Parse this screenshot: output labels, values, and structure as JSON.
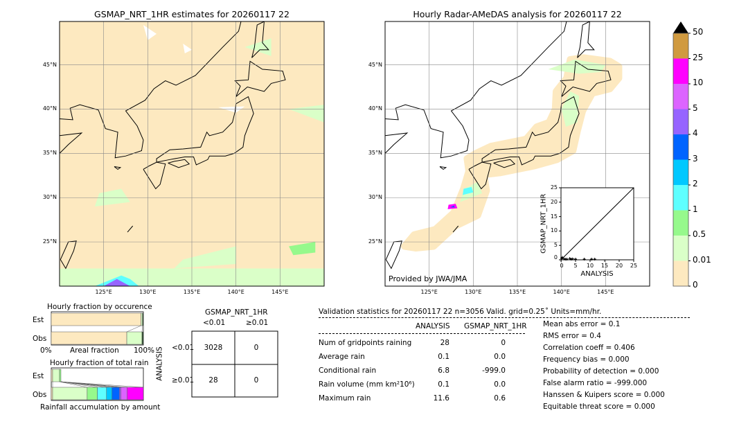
{
  "left_map": {
    "title": "GSMAP_NRT_1HR estimates for 20260117 22",
    "lon_ticks": [
      "125°E",
      "130°E",
      "135°E",
      "140°E",
      "145°E"
    ],
    "lat_ticks": [
      "45°N",
      "40°N",
      "35°N",
      "30°N",
      "25°N"
    ]
  },
  "right_map": {
    "title": "Hourly Radar-AMeDAS analysis for 20260117 22",
    "lon_ticks": [
      "125°E",
      "130°E",
      "135°E",
      "140°E",
      "145°E"
    ],
    "lat_ticks": [
      "45°N",
      "40°N",
      "35°N",
      "30°N",
      "25°N"
    ],
    "credit": "Provided by JWA/JMA"
  },
  "colors": {
    "land_bg": "#fde9c0",
    "nodata": "#ffffff",
    "coast": "#000000"
  },
  "chart_data": [
    {
      "type": "colorbar",
      "levels": [
        "0",
        "0.01",
        "0.5",
        "1",
        "2",
        "3",
        "4",
        "5",
        "10",
        "25",
        "50"
      ],
      "colors": [
        "#fde9c0",
        "#daffc8",
        "#96f98c",
        "#5effff",
        "#00c8ff",
        "#0064ff",
        "#9664ff",
        "#dc64ff",
        "#ff00ff",
        "#d09a40"
      ],
      "extend": "max",
      "extend_color": "#000000"
    },
    {
      "type": "scatter",
      "xlabel": "ANALYSIS",
      "ylabel": "GSMAP_NRT_1HR",
      "xlim": [
        0,
        25
      ],
      "ylim": [
        0,
        25
      ],
      "ticks": [
        "0",
        "5",
        "10",
        "15",
        "20",
        "25"
      ],
      "diagonal": true,
      "points": [
        [
          0.2,
          0.3
        ],
        [
          0.5,
          0.6
        ],
        [
          1,
          0.1
        ],
        [
          1.5,
          0
        ],
        [
          2,
          0
        ],
        [
          3,
          0.2
        ],
        [
          3.5,
          0
        ],
        [
          4,
          0.1
        ],
        [
          5,
          0
        ],
        [
          8,
          0
        ],
        [
          10.5,
          0
        ],
        [
          11.6,
          0
        ]
      ]
    },
    {
      "type": "bar",
      "title": "Hourly fraction by occurence",
      "categories": [
        "Est",
        "Obs"
      ],
      "xlabel": "Areal fraction",
      "xtick_left": "0%",
      "xtick_right": "100%",
      "series": [
        {
          "color": "#fde9c0",
          "values": [
            0.975,
            0.82
          ]
        },
        {
          "color": "#daffc8",
          "values": [
            0.015,
            0.165
          ]
        },
        {
          "color": "#2d4d2d",
          "values": [
            0.01,
            0.015
          ]
        }
      ]
    },
    {
      "type": "bar",
      "title": "Hourly fraction of total rain",
      "categories": [
        "Est",
        "Obs"
      ],
      "xlabel": "Rainfall accumulation by amount",
      "series": [
        {
          "color": "#fde9c0",
          "values": [
            0.015,
            0.015
          ]
        },
        {
          "color": "#daffc8",
          "values": [
            0.075,
            0.375
          ]
        },
        {
          "color": "#96f98c",
          "values": [
            0.015,
            0.11
          ]
        },
        {
          "color": "#5effff",
          "values": [
            0,
            0.1
          ]
        },
        {
          "color": "#00c8ff",
          "values": [
            0,
            0.06
          ]
        },
        {
          "color": "#0064ff",
          "values": [
            0,
            0.08
          ]
        },
        {
          "color": "#9664ff",
          "values": [
            0,
            0.015
          ]
        },
        {
          "color": "#dc64ff",
          "values": [
            0,
            0.07
          ]
        },
        {
          "color": "#ff00ff",
          "values": [
            0,
            0.175
          ]
        }
      ]
    },
    {
      "type": "table",
      "title": "GSMAP_NRT_1HR",
      "col_headers": [
        "<0.01",
        "≥0.01"
      ],
      "row_label": "ANALYSIS",
      "row_headers": [
        "<0.01",
        "≥0.01"
      ],
      "cells": [
        [
          "3028",
          "0"
        ],
        [
          "28",
          "0"
        ]
      ]
    }
  ],
  "stats": {
    "header": "Validation statistics for 20260117 22  n=3056 Valid. grid=0.25˚ Units=mm/hr.",
    "col_analysis": "ANALYSIS",
    "col_gsmap": "GSMAP_NRT_1HR",
    "rows": [
      {
        "label": "Num of gridpoints raining",
        "analysis": "28",
        "gsmap": "0"
      },
      {
        "label": "Average rain",
        "analysis": "0.1",
        "gsmap": "0.0"
      },
      {
        "label": "Conditional rain",
        "analysis": "6.8",
        "gsmap": "-999.0"
      },
      {
        "label": "Rain volume (mm km²10⁶)",
        "analysis": "0.1",
        "gsmap": "0.0"
      },
      {
        "label": "Maximum rain",
        "analysis": "11.6",
        "gsmap": "0.6"
      }
    ],
    "scores": [
      "Mean abs error =    0.1",
      "RMS error =    0.4",
      "Correlation coeff =  0.406",
      "Frequency bias =  0.000",
      "Probability of detection =  0.000",
      "False alarm ratio = -999.000",
      "Hanssen & Kuipers score =  0.000",
      "Equitable threat score =  0.000"
    ]
  }
}
